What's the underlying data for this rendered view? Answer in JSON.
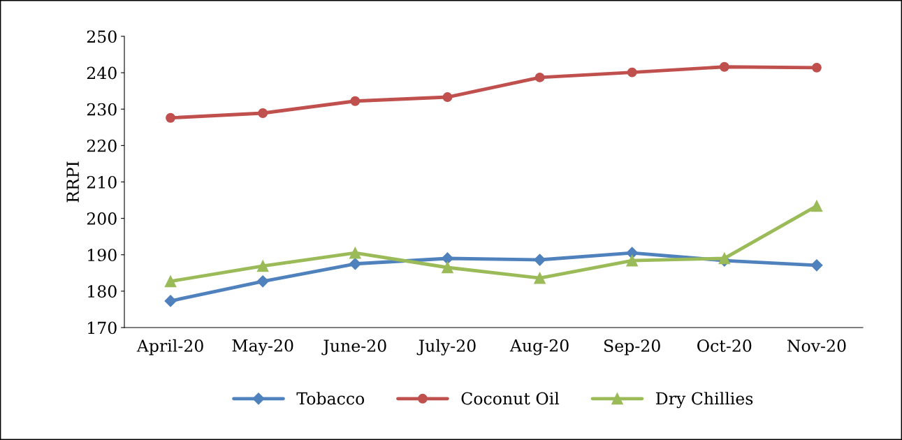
{
  "chart_data": {
    "type": "line",
    "ylabel": "RRPI",
    "categories": [
      "April-20",
      "May-20",
      "June-20",
      "July-20",
      "Aug-20",
      "Sep-20",
      "Oct-20",
      "Nov-20"
    ],
    "series": [
      {
        "name": "Tobacco",
        "color": "#4f81bd",
        "marker": "diamond",
        "values": [
          177.3,
          182.7,
          187.5,
          189.0,
          188.6,
          190.5,
          188.4,
          187.1
        ]
      },
      {
        "name": "Coconut Oil",
        "color": "#c0504d",
        "marker": "circle",
        "values": [
          227.6,
          228.9,
          232.2,
          233.3,
          238.7,
          240.1,
          241.6,
          241.4
        ]
      },
      {
        "name": "Dry Chillies",
        "color": "#9bbb59",
        "marker": "triangle",
        "values": [
          182.7,
          186.9,
          190.5,
          186.5,
          183.6,
          188.4,
          189.0,
          203.4
        ]
      }
    ],
    "ylim": [
      170,
      250
    ],
    "yticks": [
      170,
      180,
      190,
      200,
      210,
      220,
      230,
      240,
      250
    ],
    "grid": false,
    "legend": "bottom"
  }
}
